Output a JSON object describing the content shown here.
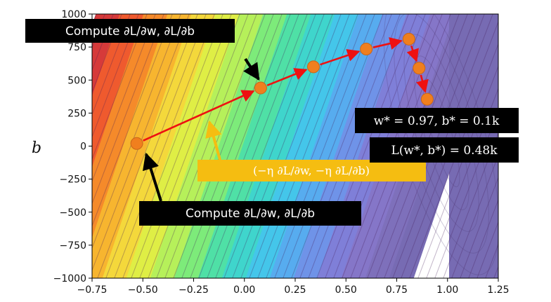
{
  "chart_data": {
    "type": "contour",
    "xlabel": "",
    "ylabel": "b",
    "xlim": [
      -0.75,
      1.25
    ],
    "ylim": [
      -1000,
      1000
    ],
    "xticks": [
      "−0.75",
      "−0.50",
      "−0.25",
      "0.00",
      "0.25",
      "0.50",
      "0.75",
      "1.00",
      "1.25"
    ],
    "yticks": [
      "1000",
      "750",
      "500",
      "250",
      "0",
      "−250",
      "−500",
      "−750",
      "−1000"
    ],
    "path_points": [
      {
        "x": -0.53,
        "y": 20
      },
      {
        "x": 0.08,
        "y": 440
      },
      {
        "x": 0.34,
        "y": 600
      },
      {
        "x": 0.6,
        "y": 735
      },
      {
        "x": 0.81,
        "y": 810
      },
      {
        "x": 0.86,
        "y": 590
      },
      {
        "x": 0.9,
        "y": 355
      }
    ],
    "colors": {
      "path": "#ee1111",
      "point": "#f07f1e",
      "annotation_bg": "#000000",
      "update_bg": "#f5bd11"
    }
  },
  "annotations": {
    "compute_top": "Compute ∂L/∂w, ∂L/∂b",
    "compute_bottom": "Compute ∂L/∂w, ∂L/∂b",
    "update": "(−η ∂L/∂w, −η ∂L/∂b)",
    "optimum": "w* = 0.97, b* = 0.1k",
    "loss": "L(w*, b*) = 0.48k"
  }
}
